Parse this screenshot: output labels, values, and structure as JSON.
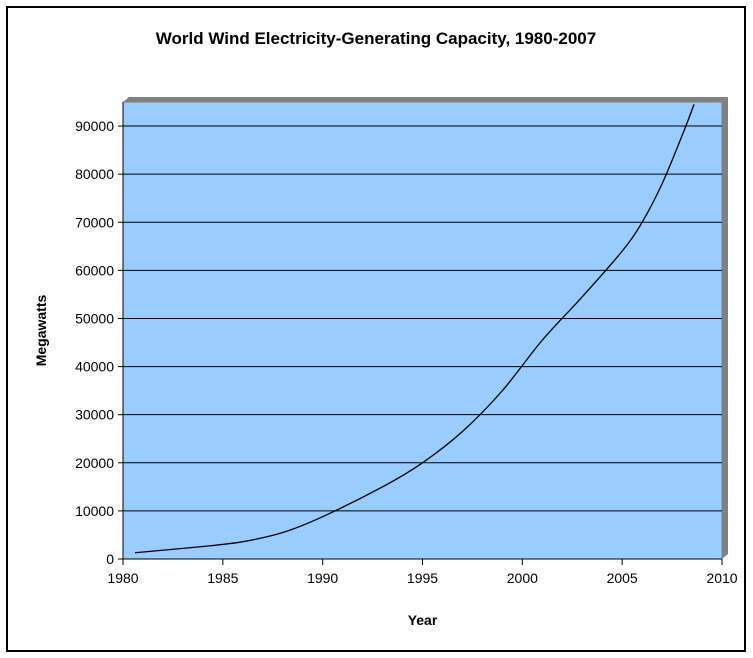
{
  "chart_data": {
    "type": "line",
    "title": "World Wind Electricity-Generating Capacity, 1980-2007",
    "xlabel": "Year",
    "ylabel": "Megawatts",
    "xlim": [
      1980,
      2010
    ],
    "ylim": [
      0,
      95000
    ],
    "x_ticks": [
      1980,
      1985,
      1990,
      1995,
      2000,
      2005,
      2010
    ],
    "y_ticks": [
      0,
      10000,
      20000,
      30000,
      40000,
      50000,
      60000,
      70000,
      80000,
      90000
    ],
    "x_tick_labels": [
      "1980",
      "1985",
      "1990",
      "1995",
      "2000",
      "2005",
      "2010"
    ],
    "y_tick_labels": [
      "0",
      "10000",
      "20000",
      "30000",
      "40000",
      "50000",
      "60000",
      "70000",
      "80000",
      "90000"
    ],
    "grid": true,
    "legend": false,
    "plot_background": "#99CCFF",
    "line_color": "#000000",
    "series": [
      {
        "x": [
          1980.6,
          1984,
          1986,
          1988,
          1990,
          1993,
          1995,
          1997,
          1999,
          2001,
          2003,
          2005,
          2006,
          2007,
          2008,
          2008.6
        ],
        "values": [
          1300,
          2600,
          3600,
          5500,
          8800,
          15000,
          20000,
          26500,
          35000,
          45500,
          54500,
          64000,
          70000,
          78000,
          88000,
          94500
        ]
      }
    ]
  }
}
